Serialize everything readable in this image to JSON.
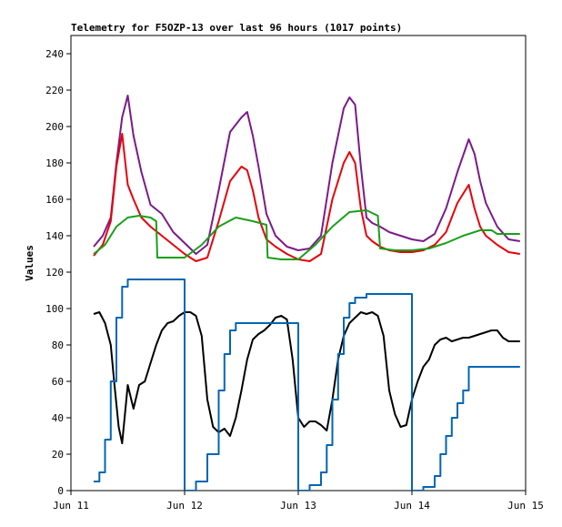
{
  "chart_data": {
    "type": "line",
    "title": "Telemetry for F5OZP-13 over last 96 hours (1017 points)",
    "xlabel": "",
    "ylabel": "Values",
    "xlim": [
      0,
      4
    ],
    "ylim": [
      0,
      250
    ],
    "x_ticks": [
      {
        "value": 0,
        "label": "Jun 11"
      },
      {
        "value": 1,
        "label": "Jun 12"
      },
      {
        "value": 2,
        "label": "Jun 13"
      },
      {
        "value": 3,
        "label": "Jun 14"
      },
      {
        "value": 4,
        "label": "Jun 15"
      }
    ],
    "y_ticks": [
      0,
      20,
      40,
      60,
      80,
      100,
      120,
      140,
      160,
      180,
      200,
      220,
      240
    ],
    "x_unit": "days since Jun 11 00:00",
    "series": [
      {
        "name": "purple",
        "color": "#7b1a8a",
        "x": [
          0.2,
          0.28,
          0.35,
          0.4,
          0.45,
          0.5,
          0.55,
          0.62,
          0.7,
          0.8,
          0.9,
          1.0,
          1.1,
          1.2,
          1.3,
          1.4,
          1.5,
          1.55,
          1.6,
          1.65,
          1.72,
          1.8,
          1.9,
          2.0,
          2.1,
          2.2,
          2.3,
          2.4,
          2.45,
          2.5,
          2.55,
          2.6,
          2.65,
          2.72,
          2.8,
          2.9,
          3.0,
          3.1,
          3.2,
          3.3,
          3.4,
          3.5,
          3.55,
          3.6,
          3.65,
          3.75,
          3.85,
          3.95
        ],
        "values": [
          134,
          140,
          150,
          180,
          205,
          217,
          195,
          175,
          157,
          152,
          142,
          136,
          130,
          135,
          165,
          197,
          205,
          208,
          195,
          178,
          152,
          140,
          134,
          132,
          133,
          140,
          180,
          210,
          216,
          212,
          178,
          150,
          147,
          145,
          142,
          140,
          138,
          137,
          141,
          155,
          175,
          193,
          185,
          170,
          158,
          145,
          138,
          137
        ]
      },
      {
        "name": "red",
        "color": "#e8000b",
        "x": [
          0.2,
          0.28,
          0.35,
          0.4,
          0.45,
          0.5,
          0.55,
          0.62,
          0.7,
          0.8,
          0.9,
          1.0,
          1.1,
          1.2,
          1.3,
          1.4,
          1.5,
          1.55,
          1.6,
          1.65,
          1.72,
          1.8,
          1.9,
          2.0,
          2.1,
          2.2,
          2.3,
          2.4,
          2.45,
          2.5,
          2.55,
          2.6,
          2.65,
          2.72,
          2.8,
          2.9,
          3.0,
          3.1,
          3.2,
          3.3,
          3.4,
          3.5,
          3.55,
          3.6,
          3.65,
          3.75,
          3.85,
          3.95
        ],
        "values": [
          129,
          135,
          148,
          178,
          196,
          168,
          160,
          150,
          145,
          140,
          135,
          130,
          126,
          128,
          148,
          170,
          178,
          176,
          165,
          150,
          138,
          134,
          130,
          127,
          126,
          130,
          160,
          180,
          186,
          180,
          155,
          140,
          137,
          134,
          132,
          131,
          131,
          132,
          135,
          142,
          158,
          168,
          155,
          145,
          140,
          135,
          131,
          130
        ]
      },
      {
        "name": "green",
        "color": "#18a018",
        "x": [
          0.2,
          0.3,
          0.4,
          0.5,
          0.6,
          0.7,
          0.75,
          0.76,
          0.9,
          1.0,
          1.15,
          1.3,
          1.45,
          1.6,
          1.72,
          1.73,
          1.85,
          2.0,
          2.15,
          2.3,
          2.45,
          2.6,
          2.7,
          2.72,
          2.85,
          3.0,
          3.15,
          3.3,
          3.45,
          3.6,
          3.7,
          3.75,
          3.95
        ],
        "values": [
          130,
          135,
          145,
          150,
          151,
          150,
          148,
          128,
          128,
          128,
          135,
          145,
          150,
          148,
          146,
          128,
          127,
          127,
          135,
          145,
          153,
          154,
          151,
          133,
          132,
          132,
          133,
          136,
          140,
          143,
          143,
          141,
          141
        ]
      },
      {
        "name": "black",
        "color": "#000000",
        "x": [
          0.2,
          0.25,
          0.3,
          0.35,
          0.38,
          0.42,
          0.45,
          0.5,
          0.55,
          0.6,
          0.65,
          0.7,
          0.75,
          0.8,
          0.85,
          0.9,
          0.95,
          1.0,
          1.05,
          1.1,
          1.15,
          1.2,
          1.25,
          1.3,
          1.35,
          1.4,
          1.45,
          1.5,
          1.55,
          1.6,
          1.65,
          1.7,
          1.75,
          1.8,
          1.85,
          1.9,
          1.95,
          2.0,
          2.05,
          2.1,
          2.15,
          2.2,
          2.25,
          2.3,
          2.35,
          2.4,
          2.45,
          2.5,
          2.55,
          2.6,
          2.65,
          2.7,
          2.75,
          2.8,
          2.85,
          2.9,
          2.95,
          3.0,
          3.05,
          3.1,
          3.15,
          3.2,
          3.25,
          3.3,
          3.35,
          3.4,
          3.45,
          3.5,
          3.55,
          3.6,
          3.65,
          3.7,
          3.75,
          3.8,
          3.85,
          3.9,
          3.95
        ],
        "values": [
          97,
          98,
          92,
          80,
          60,
          35,
          26,
          58,
          45,
          58,
          60,
          70,
          80,
          88,
          92,
          93,
          96,
          98,
          98,
          96,
          85,
          50,
          35,
          32,
          34,
          30,
          40,
          55,
          72,
          83,
          86,
          88,
          91,
          95,
          96,
          94,
          72,
          40,
          35,
          38,
          38,
          36,
          33,
          50,
          72,
          85,
          92,
          95,
          98,
          97,
          98,
          96,
          85,
          55,
          42,
          35,
          36,
          50,
          60,
          68,
          72,
          80,
          83,
          84,
          82,
          83,
          84,
          84,
          85,
          86,
          87,
          88,
          88,
          84,
          82,
          82,
          82
        ]
      },
      {
        "name": "blue",
        "color": "#0066b3",
        "step": true,
        "x": [
          0.2,
          0.25,
          0.3,
          0.35,
          0.4,
          0.45,
          0.5,
          0.55,
          0.6,
          0.7,
          0.8,
          0.9,
          0.99,
          1.0,
          1.1,
          1.2,
          1.3,
          1.35,
          1.4,
          1.45,
          1.5,
          1.6,
          1.7,
          1.99,
          2.0,
          2.1,
          2.2,
          2.25,
          2.3,
          2.35,
          2.4,
          2.45,
          2.5,
          2.6,
          2.7,
          2.8,
          2.9,
          2.99,
          3.0,
          3.1,
          3.2,
          3.25,
          3.3,
          3.35,
          3.4,
          3.45,
          3.5,
          3.6,
          3.7,
          3.8,
          3.9,
          3.95
        ],
        "values": [
          5,
          10,
          28,
          60,
          95,
          112,
          116,
          116,
          116,
          116,
          116,
          116,
          116,
          0,
          5,
          20,
          55,
          75,
          88,
          92,
          92,
          92,
          92,
          92,
          0,
          3,
          10,
          25,
          50,
          75,
          95,
          103,
          106,
          108,
          108,
          108,
          108,
          108,
          0,
          2,
          8,
          20,
          30,
          40,
          48,
          55,
          68,
          68,
          68,
          68,
          68,
          68
        ]
      }
    ]
  }
}
